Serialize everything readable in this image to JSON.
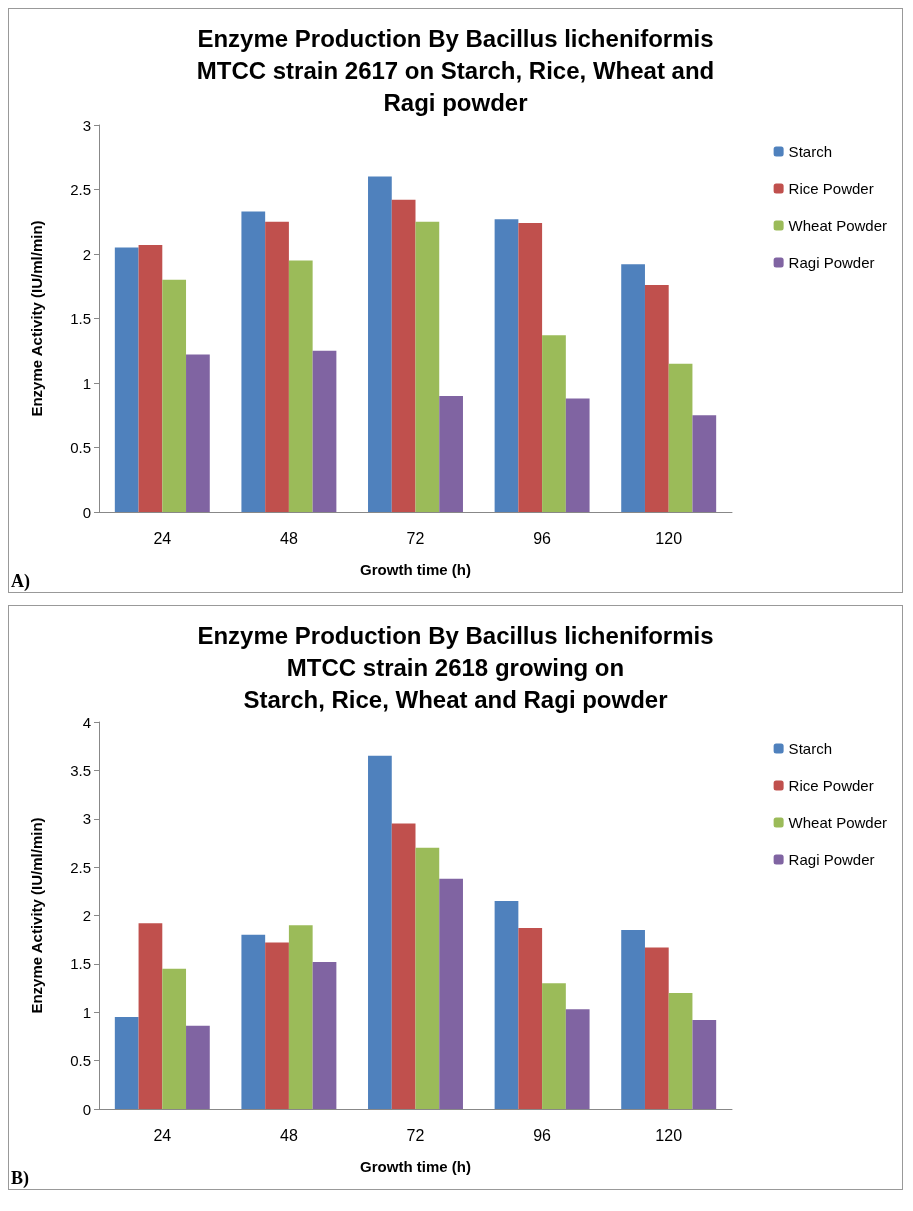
{
  "chart_data": [
    {
      "type": "bar",
      "title": "Enzyme Production By Bacillus licheniformis\nMTCC strain 2617 on Starch, Rice, Wheat and\nRagi powder",
      "xlabel": "Growth time (h)",
      "ylabel": "Enzyme Activity (IU/ml/min)",
      "annotations": [
        "A)"
      ],
      "categories": [
        "24",
        "48",
        "72",
        "96",
        "120"
      ],
      "series": [
        {
          "name": "Starch",
          "color": "#4f81bd",
          "values": [
            2.05,
            2.33,
            2.6,
            2.27,
            1.92
          ]
        },
        {
          "name": "Rice Powder",
          "color": "#c0504d",
          "values": [
            2.07,
            2.25,
            2.42,
            2.24,
            1.76
          ]
        },
        {
          "name": "Wheat Powder",
          "color": "#9bbb59",
          "values": [
            1.8,
            1.95,
            2.25,
            1.37,
            1.15
          ]
        },
        {
          "name": "Ragi Powder",
          "color": "#8064a2",
          "values": [
            1.22,
            1.25,
            0.9,
            0.88,
            0.75
          ]
        }
      ],
      "ylim": [
        0,
        3
      ],
      "yticks": [
        0,
        0.5,
        1,
        1.5,
        2,
        2.5,
        3
      ],
      "grid": false,
      "legend": "right"
    },
    {
      "type": "bar",
      "title": "Enzyme Production By Bacillus licheniformis\nMTCC strain 2618 growing on\nStarch, Rice, Wheat and Ragi powder",
      "xlabel": "Growth time (h)",
      "ylabel": "Enzyme Activity (IU/ml/min)",
      "annotations": [
        "B)"
      ],
      "categories": [
        "24",
        "48",
        "72",
        "96",
        "120"
      ],
      "series": [
        {
          "name": "Starch",
          "color": "#4f81bd",
          "values": [
            0.95,
            1.8,
            3.65,
            2.15,
            1.85
          ]
        },
        {
          "name": "Rice Powder",
          "color": "#c0504d",
          "values": [
            1.92,
            1.72,
            2.95,
            1.87,
            1.67
          ]
        },
        {
          "name": "Wheat Powder",
          "color": "#9bbb59",
          "values": [
            1.45,
            1.9,
            2.7,
            1.3,
            1.2
          ]
        },
        {
          "name": "Ragi Powder",
          "color": "#8064a2",
          "values": [
            0.86,
            1.52,
            2.38,
            1.03,
            0.92
          ]
        }
      ],
      "ylim": [
        0,
        4
      ],
      "yticks": [
        0,
        0.5,
        1,
        1.5,
        2,
        2.5,
        3,
        3.5,
        4
      ],
      "grid": false,
      "legend": "right"
    }
  ]
}
